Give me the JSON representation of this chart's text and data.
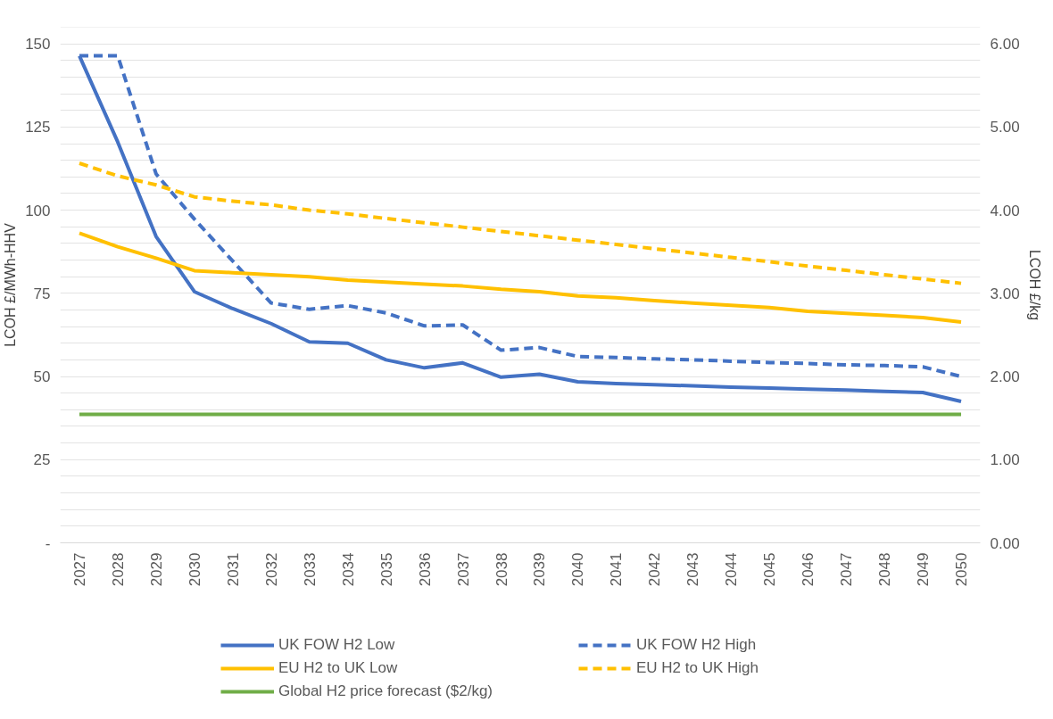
{
  "chart_data": {
    "type": "line",
    "ylabel": "LCOH £/MWh-HHV",
    "y2label": "LCOH £/kg",
    "categories": [
      "2027",
      "2028",
      "2029",
      "2030",
      "2031",
      "2032",
      "2033",
      "2034",
      "2035",
      "2036",
      "2037",
      "2038",
      "2039",
      "2040",
      "2041",
      "2042",
      "2043",
      "2044",
      "2045",
      "2046",
      "2047",
      "2048",
      "2049",
      "2050"
    ],
    "ylim": [
      0,
      155
    ],
    "yticks": [
      {
        "value": 0,
        "label": "-"
      },
      {
        "value": 5,
        "label": null
      },
      {
        "value": 10,
        "label": null
      },
      {
        "value": 15,
        "label": null
      },
      {
        "value": 20,
        "label": null
      },
      25,
      {
        "value": 30,
        "label": null
      },
      {
        "value": 35,
        "label": null
      },
      {
        "value": 40,
        "label": null
      },
      {
        "value": 45,
        "label": null
      },
      50,
      {
        "value": 55,
        "label": null
      },
      {
        "value": 60,
        "label": null
      },
      {
        "value": 65,
        "label": null
      },
      {
        "value": 70,
        "label": null
      },
      75,
      {
        "value": 80,
        "label": null
      },
      {
        "value": 85,
        "label": null
      },
      {
        "value": 90,
        "label": null
      },
      {
        "value": 95,
        "label": null
      },
      100,
      {
        "value": 105,
        "label": null
      },
      {
        "value": 110,
        "label": null
      },
      {
        "value": 115,
        "label": null
      },
      {
        "value": 120,
        "label": null
      },
      125,
      {
        "value": 130,
        "label": null
      },
      {
        "value": 135,
        "label": null
      },
      {
        "value": 140,
        "label": null
      },
      {
        "value": 145,
        "label": null
      },
      150,
      {
        "value": 155,
        "label": null
      }
    ],
    "y2lim": [
      0,
      6.2
    ],
    "y2ticks": [
      {
        "value": 0,
        "label": "0.00"
      },
      {
        "value": 1,
        "label": "1.00"
      },
      {
        "value": 2,
        "label": "2.00"
      },
      {
        "value": 3,
        "label": "3.00"
      },
      {
        "value": 4,
        "label": "4.00"
      },
      {
        "value": 5,
        "label": "5.00"
      },
      {
        "value": 6,
        "label": "6.00"
      }
    ],
    "grid": "y",
    "legend": "bottom",
    "series": [
      {
        "name": "UK FOW H2 Low",
        "color": "#4472c4",
        "line_style": "solid",
        "values": [
          146.4,
          120.5,
          92.1,
          75.5,
          70.4,
          65.9,
          60.4,
          60.0,
          55.0,
          52.6,
          54.1,
          49.8,
          50.7,
          48.4,
          47.9,
          47.5,
          47.2,
          46.8,
          46.5,
          46.2,
          45.9,
          45.5,
          45.2,
          42.5
        ]
      },
      {
        "name": "UK FOW H2 High",
        "color": "#4472c4",
        "line_style": "dashed",
        "values": [
          146.4,
          146.4,
          110.9,
          97.3,
          84.7,
          72.1,
          70.2,
          71.3,
          69.1,
          65.2,
          65.5,
          57.9,
          58.7,
          56.0,
          55.7,
          55.3,
          55.0,
          54.6,
          54.2,
          53.9,
          53.5,
          53.3,
          52.9,
          50.0
        ]
      },
      {
        "name": "EU H2 to UK Low",
        "color": "#ffc000",
        "line_style": "solid",
        "values": [
          93.1,
          89.0,
          85.6,
          81.8,
          81.2,
          80.6,
          80.0,
          79.0,
          78.4,
          77.8,
          77.2,
          76.2,
          75.5,
          74.2,
          73.7,
          72.8,
          72.1,
          71.4,
          70.7,
          69.6,
          69.0,
          68.4,
          67.7,
          66.4
        ]
      },
      {
        "name": "EU H2 to UK High",
        "color": "#ffc000",
        "line_style": "dashed",
        "values": [
          114.1,
          110.3,
          107.6,
          104.0,
          102.7,
          101.6,
          100.0,
          98.9,
          97.5,
          96.2,
          94.9,
          93.6,
          92.3,
          91.0,
          89.7,
          88.4,
          87.1,
          85.8,
          84.5,
          83.2,
          81.9,
          80.6,
          79.3,
          78.0
        ]
      },
      {
        "name": "Global H2 price forecast ($2/kg)",
        "color": "#70ad47",
        "line_style": "solid",
        "values": [
          38.6,
          38.6,
          38.6,
          38.6,
          38.6,
          38.6,
          38.6,
          38.6,
          38.6,
          38.6,
          38.6,
          38.6,
          38.6,
          38.6,
          38.6,
          38.6,
          38.6,
          38.6,
          38.6,
          38.6,
          38.6,
          38.6,
          38.6,
          38.6
        ]
      }
    ]
  }
}
